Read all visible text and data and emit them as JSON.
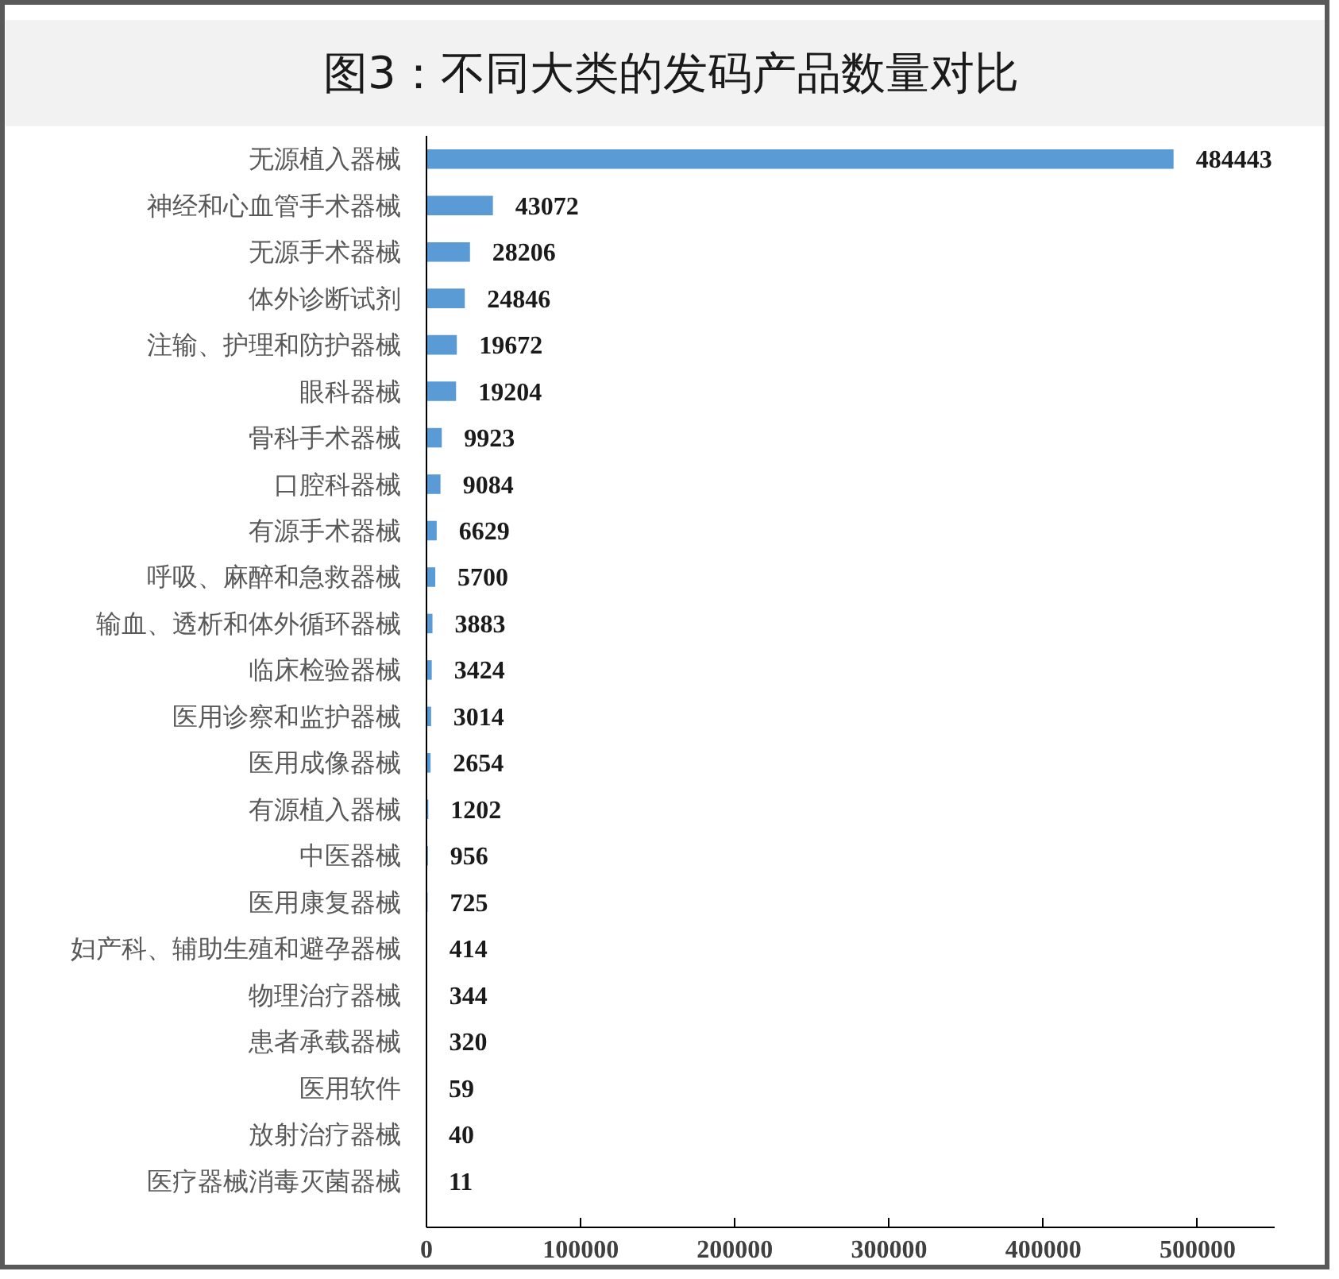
{
  "chart_data": {
    "type": "bar",
    "orientation": "horizontal",
    "title": "图3：不同大类的发码产品数量对比",
    "categories": [
      "无源植入器械",
      "神经和心血管手术器械",
      "无源手术器械",
      "体外诊断试剂",
      "注输、护理和防护器械",
      "眼科器械",
      "骨科手术器械",
      "口腔科器械",
      "有源手术器械",
      "呼吸、麻醉和急救器械",
      "输血、透析和体外循环器械",
      "临床检验器械",
      "医用诊察和监护器械",
      "医用成像器械",
      "有源植入器械",
      "中医器械",
      "医用康复器械",
      "妇产科、辅助生殖和避孕器械",
      "物理治疗器械",
      "患者承载器械",
      "医用软件",
      "放射治疗器械",
      "医疗器械消毒灭菌器械"
    ],
    "values": [
      484443,
      43072,
      28206,
      24846,
      19672,
      19204,
      9923,
      9084,
      6629,
      5700,
      3883,
      3424,
      3014,
      2654,
      1202,
      956,
      725,
      414,
      344,
      320,
      59,
      40,
      11
    ],
    "color": "#5b9bd5",
    "data_labels": true,
    "xlim": [
      0,
      550000
    ],
    "xticks": [
      0,
      100000,
      200000,
      300000,
      400000,
      500000
    ]
  }
}
